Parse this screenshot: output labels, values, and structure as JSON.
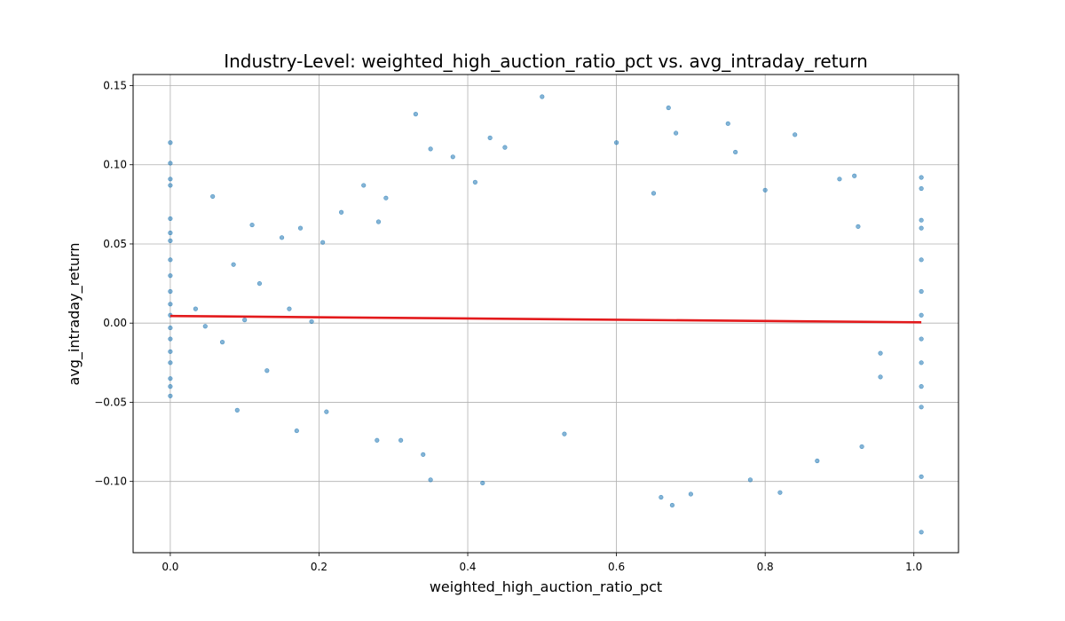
{
  "chart_data": {
    "type": "scatter",
    "title": "Industry-Level: weighted_high_auction_ratio_pct vs. avg_intraday_return",
    "xlabel": "weighted_high_auction_ratio_pct",
    "ylabel": "avg_intraday_return",
    "xlim": [
      -0.05,
      1.06
    ],
    "ylim": [
      -0.145,
      0.157
    ],
    "grid": true,
    "x_ticks": [
      {
        "value": 0.0,
        "label": "0.0"
      },
      {
        "value": 0.2,
        "label": "0.2"
      },
      {
        "value": 0.4,
        "label": "0.4"
      },
      {
        "value": 0.6,
        "label": "0.6"
      },
      {
        "value": 0.8,
        "label": "0.8"
      },
      {
        "value": 1.0,
        "label": "1.0"
      }
    ],
    "y_ticks": [
      {
        "value": -0.1,
        "label": "−0.10"
      },
      {
        "value": -0.05,
        "label": "−0.05"
      },
      {
        "value": 0.0,
        "label": "0.00"
      },
      {
        "value": 0.05,
        "label": "0.05"
      },
      {
        "value": 0.1,
        "label": "0.10"
      },
      {
        "value": 0.15,
        "label": "0.15"
      }
    ],
    "series": [
      {
        "kind": "scatter",
        "color": "#1f77b4",
        "points": [
          [
            0.0,
            0.114
          ],
          [
            0.0,
            0.101
          ],
          [
            0.0,
            0.091
          ],
          [
            0.0,
            0.087
          ],
          [
            0.0,
            0.066
          ],
          [
            0.0,
            0.057
          ],
          [
            0.0,
            0.052
          ],
          [
            0.0,
            0.04
          ],
          [
            0.0,
            0.03
          ],
          [
            0.0,
            0.02
          ],
          [
            0.0,
            0.012
          ],
          [
            0.0,
            0.005
          ],
          [
            0.0,
            -0.003
          ],
          [
            0.0,
            -0.01
          ],
          [
            0.0,
            -0.018
          ],
          [
            0.0,
            -0.025
          ],
          [
            0.0,
            -0.035
          ],
          [
            0.0,
            -0.04
          ],
          [
            0.0,
            -0.046
          ],
          [
            0.034,
            0.009
          ],
          [
            0.047,
            -0.002
          ],
          [
            0.057,
            0.08
          ],
          [
            0.07,
            -0.012
          ],
          [
            0.085,
            0.037
          ],
          [
            0.09,
            -0.055
          ],
          [
            0.1,
            0.002
          ],
          [
            0.11,
            0.062
          ],
          [
            0.12,
            0.025
          ],
          [
            0.13,
            -0.03
          ],
          [
            0.15,
            0.054
          ],
          [
            0.16,
            0.009
          ],
          [
            0.17,
            -0.068
          ],
          [
            0.175,
            0.06
          ],
          [
            0.19,
            0.001
          ],
          [
            0.205,
            0.051
          ],
          [
            0.21,
            -0.056
          ],
          [
            0.23,
            0.07
          ],
          [
            0.26,
            0.087
          ],
          [
            0.278,
            -0.074
          ],
          [
            0.28,
            0.064
          ],
          [
            0.29,
            0.079
          ],
          [
            0.31,
            -0.074
          ],
          [
            0.33,
            0.132
          ],
          [
            0.34,
            -0.083
          ],
          [
            0.35,
            0.11
          ],
          [
            0.35,
            -0.099
          ],
          [
            0.38,
            0.105
          ],
          [
            0.41,
            0.089
          ],
          [
            0.42,
            -0.101
          ],
          [
            0.43,
            0.117
          ],
          [
            0.45,
            0.111
          ],
          [
            0.5,
            0.143
          ],
          [
            0.53,
            -0.07
          ],
          [
            0.6,
            0.114
          ],
          [
            0.65,
            0.082
          ],
          [
            0.66,
            -0.11
          ],
          [
            0.67,
            0.136
          ],
          [
            0.675,
            -0.115
          ],
          [
            0.68,
            0.12
          ],
          [
            0.7,
            -0.108
          ],
          [
            0.75,
            0.126
          ],
          [
            0.76,
            0.108
          ],
          [
            0.78,
            -0.099
          ],
          [
            0.8,
            0.084
          ],
          [
            0.82,
            -0.107
          ],
          [
            0.84,
            0.119
          ],
          [
            0.87,
            -0.087
          ],
          [
            0.9,
            0.091
          ],
          [
            0.92,
            0.093
          ],
          [
            0.925,
            0.061
          ],
          [
            0.93,
            -0.078
          ],
          [
            0.955,
            -0.019
          ],
          [
            0.955,
            -0.034
          ],
          [
            1.01,
            0.092
          ],
          [
            1.01,
            0.085
          ],
          [
            1.01,
            0.065
          ],
          [
            1.01,
            0.06
          ],
          [
            1.01,
            0.04
          ],
          [
            1.01,
            0.02
          ],
          [
            1.01,
            0.005
          ],
          [
            1.01,
            -0.01
          ],
          [
            1.01,
            -0.025
          ],
          [
            1.01,
            -0.04
          ],
          [
            1.01,
            -0.053
          ],
          [
            1.01,
            -0.097
          ],
          [
            1.01,
            -0.132
          ]
        ]
      },
      {
        "kind": "line",
        "color": "#e31a1c",
        "points": [
          [
            0.0,
            0.0045
          ],
          [
            1.01,
            0.0005
          ]
        ]
      }
    ]
  }
}
